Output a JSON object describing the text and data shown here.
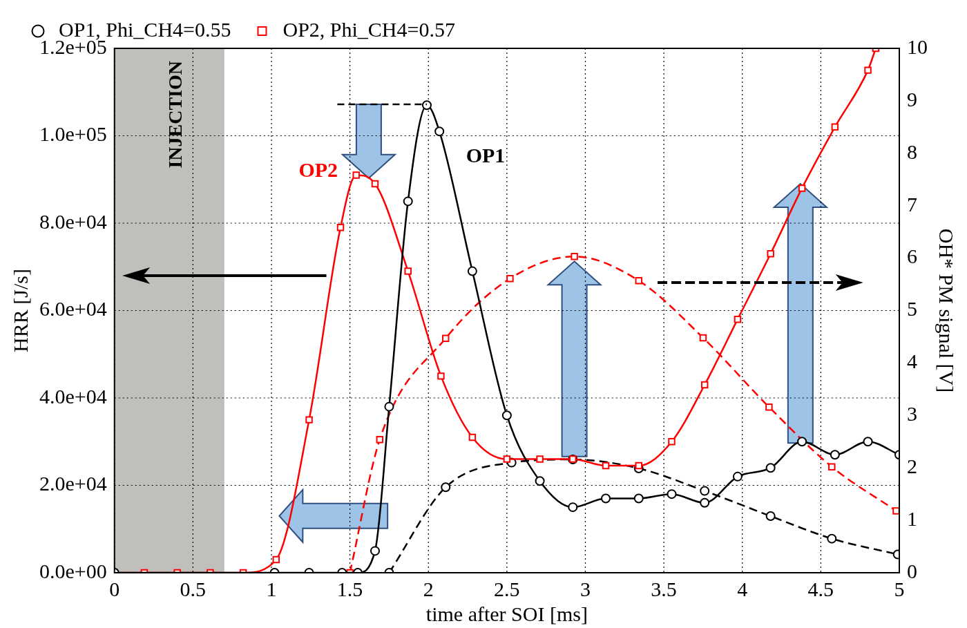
{
  "chart_data": {
    "type": "line",
    "xlabel": "time after SOI [ms]",
    "ylabel": "HRR [J/s]",
    "y2label": "OH* PM signal [V]",
    "xlim": [
      0,
      5
    ],
    "xticks": [
      0,
      0.5,
      1,
      1.5,
      2,
      2.5,
      3,
      3.5,
      4,
      4.5,
      5
    ],
    "ylim": [
      0,
      120000
    ],
    "yticks": [
      {
        "value": 0,
        "label": "0.0e+00"
      },
      {
        "value": 20000,
        "label": "2.0e+04"
      },
      {
        "value": 40000,
        "label": "4.0e+04"
      },
      {
        "value": 60000,
        "label": "6.0e+04"
      },
      {
        "value": 80000,
        "label": "8.0e+04"
      },
      {
        "value": 100000,
        "label": "1.0e+05"
      },
      {
        "value": 120000,
        "label": "1.2e+05"
      }
    ],
    "y2lim": [
      0,
      10
    ],
    "y2ticks": [
      0,
      1,
      2,
      3,
      4,
      5,
      6,
      7,
      8,
      9,
      10
    ],
    "grid": true,
    "legend": "top",
    "series": [
      {
        "name": "OP1, Phi_CH4=0.55",
        "color": "#000000",
        "marker": "circle",
        "line_style": "solid",
        "x": [
          0,
          1.02,
          1.24,
          1.45,
          1.55,
          1.66,
          1.75,
          1.87,
          1.99,
          2.07,
          2.28,
          2.5,
          2.71,
          2.92,
          3.13,
          3.34,
          3.55,
          3.76,
          3.97,
          4.18,
          4.38,
          4.59,
          4.8,
          5
        ],
        "values": [
          0,
          0,
          0,
          0,
          0,
          5000,
          38000,
          85000,
          107000,
          101000,
          69000,
          36000,
          21000,
          15000,
          17000,
          17000,
          18000,
          16000,
          22000,
          24000,
          30000,
          27000,
          30000,
          27000
        ]
      },
      {
        "name": "OP2, Phi_CH4=0.57",
        "color": "#ff0000",
        "marker": "square",
        "line_style": "solid",
        "x": [
          0,
          0.19,
          0.4,
          0.61,
          0.82,
          1.03,
          1.24,
          1.44,
          1.54,
          1.66,
          1.87,
          2.08,
          2.28,
          2.5,
          2.71,
          2.92,
          3.13,
          3.34,
          3.55,
          3.76,
          3.97,
          4.18,
          4.38,
          4.59,
          4.8,
          4.85
        ],
        "values": [
          0,
          0,
          0,
          0,
          0,
          3000,
          35000,
          79000,
          91000,
          89000,
          69000,
          45000,
          31000,
          26000,
          26000,
          26000,
          24500,
          24500,
          30000,
          43000,
          58000,
          73000,
          88000,
          102000,
          115000,
          120000
        ]
      },
      {
        "color": "#000000",
        "marker": "circle",
        "line_style": "dashed",
        "axis": "y2",
        "x": [
          1.75,
          2.11,
          2.53,
          2.92,
          3.34,
          3.76,
          4.18,
          4.57,
          4.99
        ],
        "values": [
          0,
          1.63,
          2.1,
          2.16,
          1.99,
          1.56,
          1.08,
          0.65,
          0.35
        ]
      },
      {
        "color": "#ff0000",
        "marker": "square",
        "line_style": "dashed",
        "axis": "y2",
        "x": [
          1.5,
          1.69,
          2.11,
          2.52,
          2.93,
          3.34,
          3.75,
          4.17,
          4.57,
          4.98
        ],
        "values": [
          0,
          2.54,
          4.47,
          5.61,
          6.03,
          5.57,
          4.48,
          3.16,
          2.02,
          1.18
        ]
      }
    ],
    "bands": [
      {
        "axis": "x",
        "from": 0,
        "to": 0.7,
        "label": "INJECTION",
        "color": "#c0bfbb"
      }
    ],
    "annotations": [
      "OP1",
      "OP2"
    ]
  }
}
